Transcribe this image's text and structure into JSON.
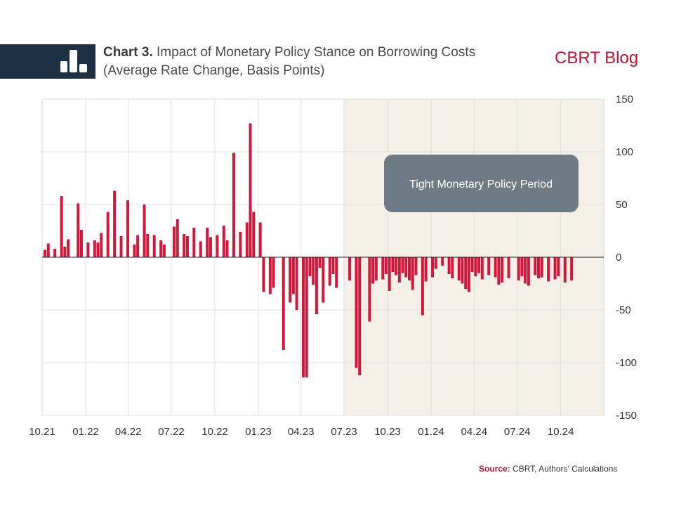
{
  "header": {
    "title_bold": "Chart 3.",
    "title_rest": "Impact of Monetary Policy Stance on Borrowing Costs",
    "subtitle": "(Average Rate Change, Basis Points)",
    "brand": "CBRT Blog",
    "logo_icon": "bar-chart-logo-icon"
  },
  "source": {
    "label": "Source:",
    "text": "CBRT, Authors’ Calculations"
  },
  "colors": {
    "bar": "#d2173a",
    "shade": "#f4efe7",
    "annotation_box": "#6f7b84",
    "header_band": "#1e3044",
    "brand": "#c8102e"
  },
  "chart_data": {
    "type": "bar",
    "title": "Impact of Monetary Policy Stance on Borrowing Costs",
    "ylabel": "(Average Rate Change, Basis Points)",
    "ylim": [
      -150,
      150
    ],
    "yticks": [
      150,
      100,
      50,
      0,
      -50,
      -100,
      -150
    ],
    "ytick_labels": [
      "150",
      "100",
      "50",
      "0",
      "-50",
      "-100",
      "-150"
    ],
    "y_axis_position": "right",
    "grid": true,
    "x_range": [
      "2021-10-01",
      "2024-12-31"
    ],
    "xticks": [
      "2021-10-01",
      "2022-01-01",
      "2022-04-01",
      "2022-07-01",
      "2022-10-01",
      "2023-01-01",
      "2023-04-01",
      "2023-07-01",
      "2023-10-01",
      "2024-01-01",
      "2024-04-01",
      "2024-07-01",
      "2024-10-01"
    ],
    "xtick_labels": [
      "10.21",
      "01.22",
      "04.22",
      "07.22",
      "10.22",
      "01.23",
      "04.23",
      "07.23",
      "10.23",
      "01.24",
      "04.24",
      "07.24",
      "10.24"
    ],
    "shaded_period": {
      "start": "2023-06-30",
      "end": "2024-12-31",
      "label": "Tight Monetary Policy Period"
    },
    "x": [
      "2021-10-07",
      "2021-10-14",
      "2021-10-28",
      "2021-11-11",
      "2021-11-18",
      "2021-11-25",
      "2021-12-16",
      "2021-12-23",
      "2022-01-06",
      "2022-01-20",
      "2022-01-27",
      "2022-02-03",
      "2022-02-17",
      "2022-03-03",
      "2022-03-17",
      "2022-03-31",
      "2022-04-14",
      "2022-04-21",
      "2022-05-05",
      "2022-05-12",
      "2022-05-26",
      "2022-06-09",
      "2022-06-16",
      "2022-07-07",
      "2022-07-14",
      "2022-07-28",
      "2022-08-04",
      "2022-08-18",
      "2022-09-01",
      "2022-09-15",
      "2022-09-22",
      "2022-10-06",
      "2022-10-20",
      "2022-10-27",
      "2022-11-10",
      "2022-11-24",
      "2022-12-08",
      "2022-12-15",
      "2022-12-22",
      "2023-01-05",
      "2023-01-12",
      "2023-01-26",
      "2023-02-02",
      "2023-02-23",
      "2023-03-09",
      "2023-03-16",
      "2023-03-23",
      "2023-04-06",
      "2023-04-13",
      "2023-04-20",
      "2023-04-27",
      "2023-05-04",
      "2023-05-11",
      "2023-05-18",
      "2023-06-01",
      "2023-06-08",
      "2023-06-15",
      "2023-07-13",
      "2023-07-27",
      "2023-08-03",
      "2023-08-24",
      "2023-08-31",
      "2023-09-07",
      "2023-09-21",
      "2023-09-28",
      "2023-10-05",
      "2023-10-12",
      "2023-10-19",
      "2023-10-26",
      "2023-11-02",
      "2023-11-09",
      "2023-11-16",
      "2023-11-23",
      "2023-11-30",
      "2023-12-14",
      "2023-12-21",
      "2024-01-04",
      "2024-01-11",
      "2024-01-25",
      "2024-02-08",
      "2024-02-15",
      "2024-02-29",
      "2024-03-07",
      "2024-03-14",
      "2024-03-21",
      "2024-03-28",
      "2024-04-04",
      "2024-04-11",
      "2024-04-18",
      "2024-05-02",
      "2024-05-16",
      "2024-05-23",
      "2024-05-30",
      "2024-06-13",
      "2024-07-04",
      "2024-07-11",
      "2024-07-18",
      "2024-07-25",
      "2024-08-08",
      "2024-08-15",
      "2024-08-22",
      "2024-09-05",
      "2024-09-19",
      "2024-09-26",
      "2024-10-10",
      "2024-10-24"
    ],
    "values": [
      7,
      13,
      8,
      58,
      10,
      17,
      51,
      26,
      14,
      16,
      14,
      23,
      43,
      63,
      20,
      54,
      12,
      21,
      50,
      22,
      21,
      16,
      12,
      29,
      36,
      22,
      20,
      28,
      15,
      28,
      19,
      21,
      30,
      16,
      99,
      24,
      33,
      127,
      43,
      33,
      -33,
      -35,
      -29,
      -88,
      -43,
      -35,
      -50,
      -114,
      -114,
      -18,
      -26,
      -54,
      -10,
      -43,
      -27,
      -16,
      -29,
      -22,
      -105,
      -112,
      -61,
      -25,
      -22,
      -21,
      -16,
      -32,
      -14,
      -17,
      -24,
      -15,
      -19,
      -22,
      -31,
      -17,
      -55,
      -23,
      -19,
      -11,
      -8,
      -16,
      -20,
      -22,
      -25,
      -30,
      -33,
      -14,
      -18,
      -15,
      -21,
      -17,
      -19,
      -26,
      -24,
      -20,
      -22,
      -18,
      -25,
      -27,
      -17,
      -20,
      -19,
      -23,
      -21,
      -18,
      -24,
      -22
    ]
  }
}
